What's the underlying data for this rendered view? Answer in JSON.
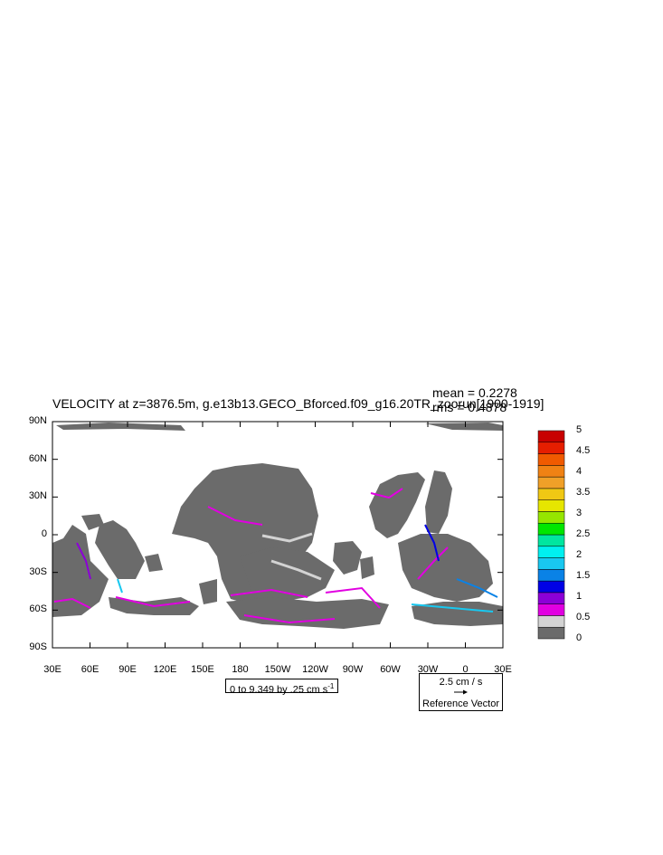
{
  "title": "VELOCITY at z=3876.5m, g.e13b13.GECO_Bforced.f09_g16.20TR_zoorun[1900-1919]",
  "stats": {
    "mean": "mean = 0.2278",
    "rms": "rms = 0.4878"
  },
  "lat_ticks": [
    "90N",
    "60N",
    "30N",
    "0",
    "30S",
    "60S",
    "90S"
  ],
  "lon_ticks": [
    "30E",
    "60E",
    "90E",
    "120E",
    "150E",
    "180",
    "150W",
    "120W",
    "90W",
    "60W",
    "30W",
    "0",
    "30E"
  ],
  "contour_info": {
    "text": "0 to 9.349 by .25 cm s",
    "sup": "-1"
  },
  "reference_vector": {
    "magnitude": "2.5 cm / s",
    "label": "Reference Vector"
  },
  "colorbar": {
    "labels": [
      "0",
      "0.5",
      "1",
      "1.5",
      "2",
      "2.5",
      "3",
      "3.5",
      "4",
      "4.5",
      "5"
    ],
    "colors": [
      "#6b6b6b",
      "#d3d3d3",
      "#e100e1",
      "#8c00d7",
      "#0000e6",
      "#0a82e6",
      "#19c8f0",
      "#00f0f0",
      "#00e6a0",
      "#00e600",
      "#96e600",
      "#e6e600",
      "#f0c814",
      "#f0a028",
      "#f08214",
      "#f05a00",
      "#e61e00",
      "#c80000"
    ]
  },
  "colors": {
    "land": "#ffffff",
    "low_speed": "#6b6b6b",
    "frame": "#000000"
  }
}
